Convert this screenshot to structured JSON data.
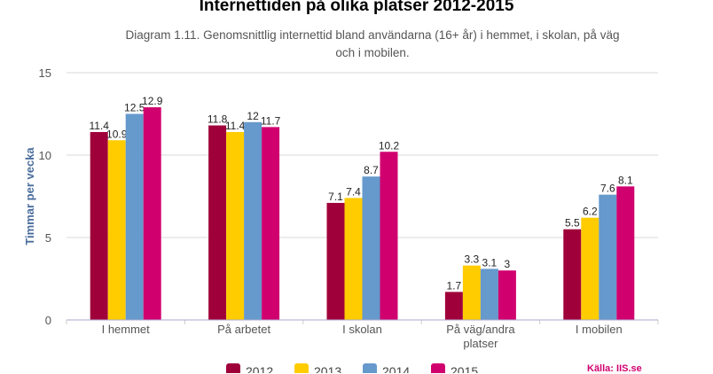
{
  "chart_data": {
    "type": "bar",
    "title": "Internettiden på olika platser 2012-2015",
    "subtitle": "Diagram 1.11. Genomsnittlig internettid bland användarna (16+ år) i hemmet, i skolan, på väg och i mobilen.",
    "xlabel": "",
    "ylabel": "Timmar per vecka",
    "ylim": [
      0,
      15
    ],
    "yticks": [
      0,
      5,
      10,
      15
    ],
    "grid": true,
    "legend_position": "bottom",
    "categories": [
      "I hemmet",
      "På arbetet",
      "I skolan",
      "På väg/andra platser",
      "I mobilen"
    ],
    "series": [
      {
        "name": "2012",
        "color": "#a0003a",
        "values": [
          11.4,
          11.8,
          7.1,
          1.7,
          5.5
        ]
      },
      {
        "name": "2013",
        "color": "#ffcc00",
        "values": [
          10.9,
          11.4,
          7.4,
          3.3,
          6.2
        ]
      },
      {
        "name": "2014",
        "color": "#6699cc",
        "values": [
          12.5,
          12,
          8.7,
          3.1,
          7.6
        ]
      },
      {
        "name": "2015",
        "color": "#d0006f",
        "values": [
          12.9,
          11.7,
          10.2,
          3,
          8.1
        ]
      }
    ],
    "source": "Källa: IIS.se"
  }
}
